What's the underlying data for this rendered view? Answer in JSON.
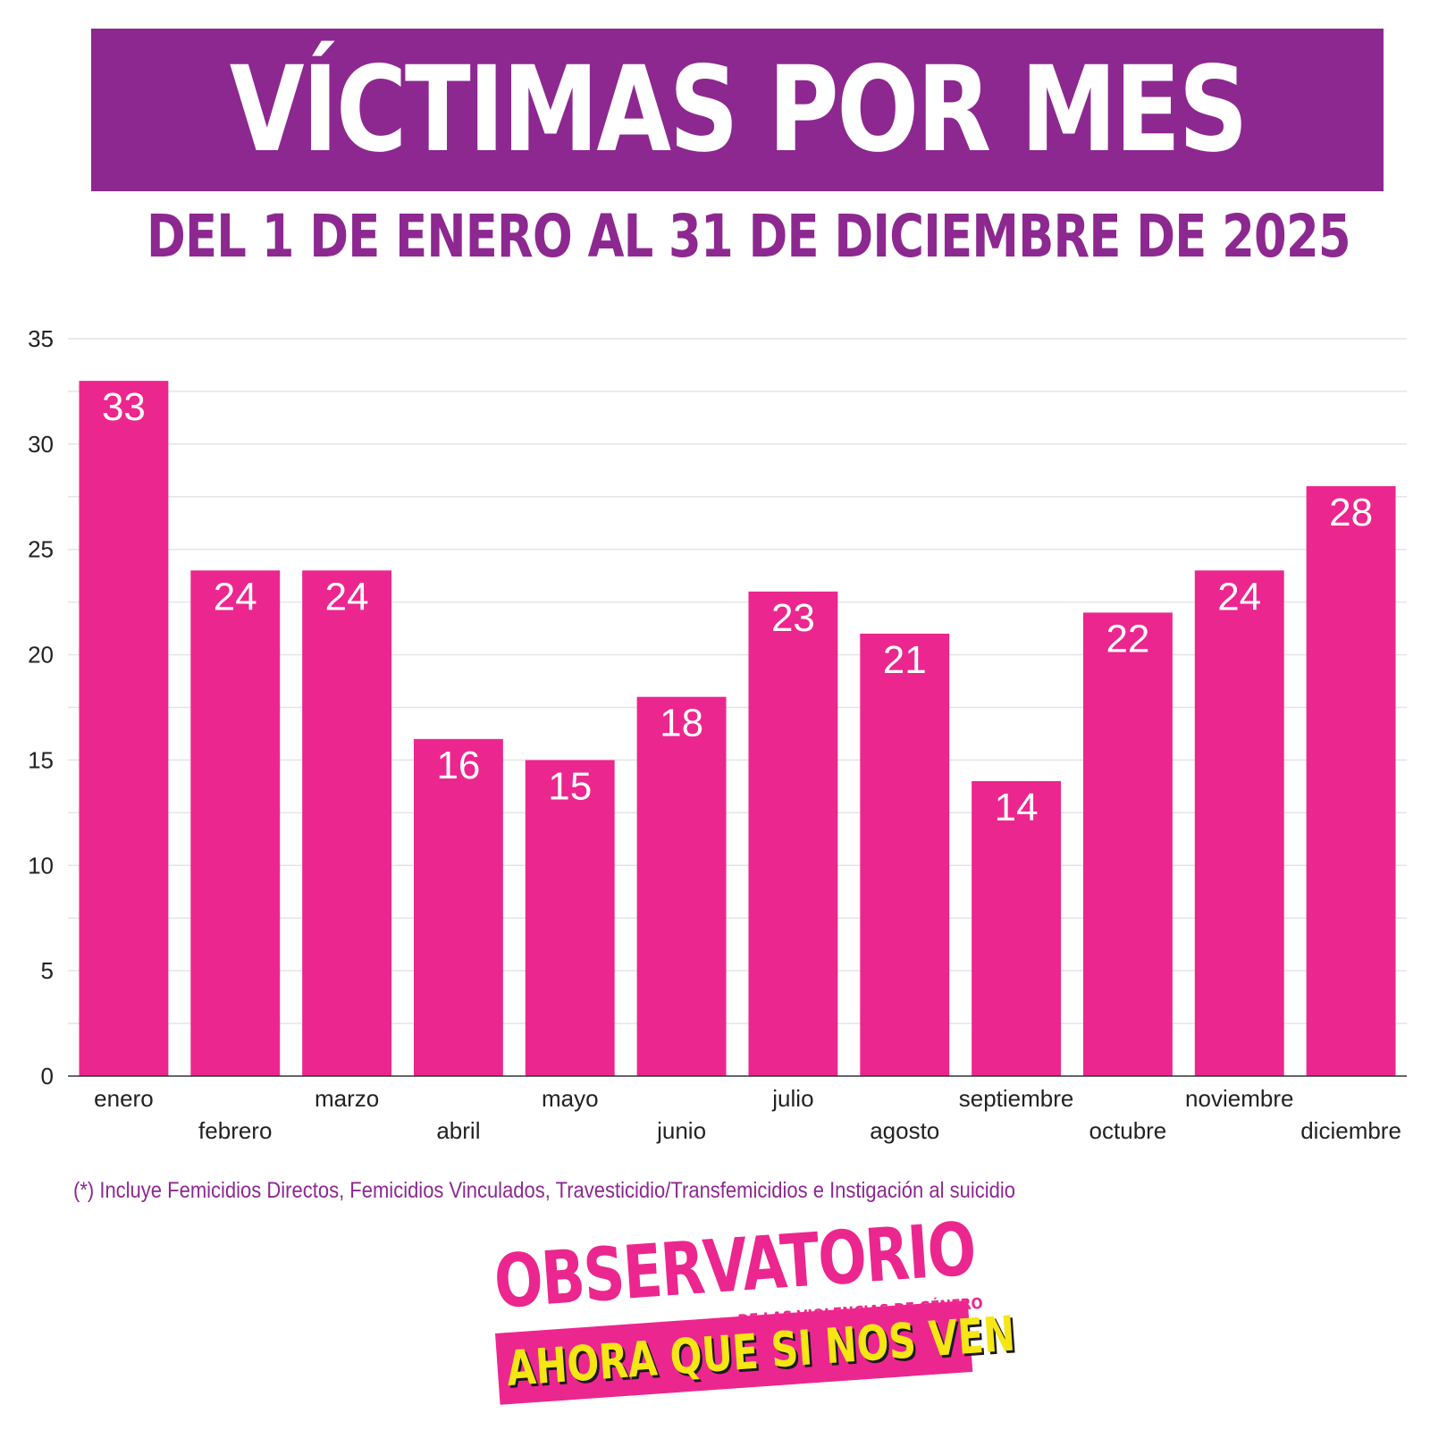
{
  "header": {
    "title": "VÍCTIMAS POR MES",
    "subtitle": "DEL 1 DE ENERO AL 31 DE DICIEMBRE DE 2025"
  },
  "chart_data": {
    "type": "bar",
    "categories": [
      "enero",
      "febrero",
      "marzo",
      "abril",
      "mayo",
      "junio",
      "julio",
      "agosto",
      "septiembre",
      "octubre",
      "noviembre",
      "diciembre"
    ],
    "values": [
      33,
      24,
      24,
      16,
      15,
      18,
      23,
      21,
      14,
      22,
      24,
      28
    ],
    "ylim": [
      0,
      35
    ],
    "yticks": [
      0,
      5,
      10,
      15,
      20,
      25,
      30,
      35
    ],
    "grid": true,
    "data_labels": true,
    "bar_color": "#ec268f",
    "label_color": "#ffffff"
  },
  "footnote": "(*) Incluye Femicidios Directos, Femicidios Vinculados,  Travesticidio/Transfemicidios e Instigación al suicidio",
  "logo": {
    "line1": "OBSERVATORIO",
    "line2": "DE LAS VIOLENCIAS DE GÉNERO",
    "line3": "AHORA QUE SI NOS VEN"
  },
  "colors": {
    "brand_purple": "#8d2890",
    "brand_pink": "#ec268f",
    "accent_yellow": "#f5e614"
  }
}
